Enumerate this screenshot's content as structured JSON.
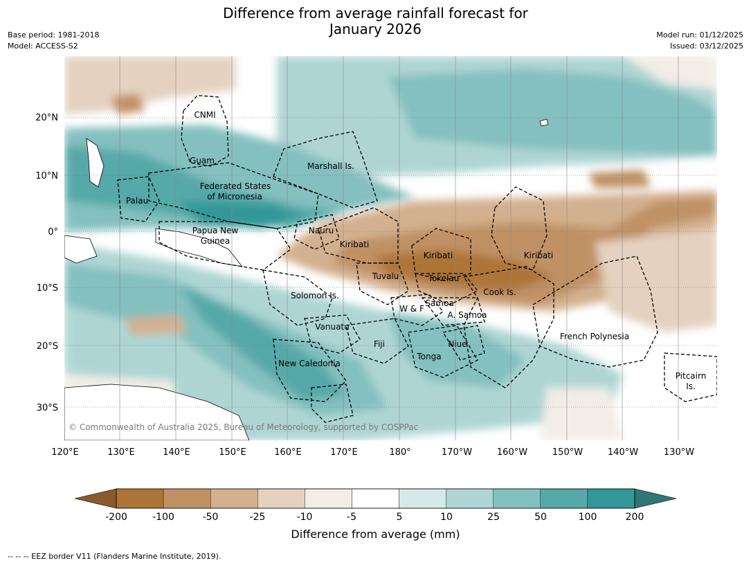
{
  "title": {
    "line1": "Difference from average rainfall forecast for",
    "line2": "January 2026"
  },
  "meta_left": {
    "base_period": "Base period: 1981-2018",
    "model": "Model: ACCESS-S2"
  },
  "meta_right": {
    "model_run": "Model run: 01/12/2025",
    "issued": "Issued: 03/12/2025"
  },
  "map": {
    "copyright": "© Commonwealth of Australia 2025, Bureau of Meteorology, supported by COSPPac",
    "lat_labels": [
      "20°N",
      "10°N",
      "0°",
      "10°S",
      "20°S",
      "30°S"
    ],
    "lon_labels": [
      "120°E",
      "130°E",
      "140°E",
      "150°E",
      "160°E",
      "170°E",
      "180°",
      "170°W",
      "160°W",
      "150°W",
      "140°W",
      "130°W"
    ],
    "regions": {
      "cnmi": "CNMI",
      "guam": "Guam",
      "marshall": "Marshall Is.",
      "fsm1": "Federated States",
      "fsm2": "of Micronesia",
      "palau": "Palau",
      "png1": "Papua New",
      "png2": "Guinea",
      "nauru": "Nauru",
      "kiribati_w": "Kiribati",
      "kiribati_c": "Kiribati",
      "kiribati_e": "Kiribati",
      "tuvalu": "Tuvalu",
      "tokelau": "Tokelau",
      "cook": "Cook Is.",
      "solomon": "Solomon Is.",
      "wf": "W & F",
      "samoa": "Samoa",
      "asamoa": "A. Samoa",
      "vanuatu": "Vanuatu",
      "fiji": "Fiji",
      "niue": "Niue",
      "tonga": "Tonga",
      "frpoly": "French Polynesia",
      "newcal": "New Caledonia",
      "pitcairn1": "Pitcairn",
      "pitcairn2": "Is."
    }
  },
  "colorbar": {
    "ticks": [
      "-200",
      "-100",
      "-50",
      "-25",
      "-10",
      "-5",
      "5",
      "10",
      "25",
      "50",
      "100",
      "200"
    ],
    "label": "Difference from average (mm)",
    "colors": [
      "#8b5a2b",
      "#ad7437",
      "#c09165",
      "#d3b08f",
      "#e4d1bf",
      "#f2ede6",
      "#ffffff",
      "#d5e9e8",
      "#aed5d4",
      "#84c0bf",
      "#57a9a9",
      "#339797",
      "#2e7775"
    ]
  },
  "eez_note": "--  --  -- EEZ border V11 (Flanders Marine Institute, 2019)."
}
